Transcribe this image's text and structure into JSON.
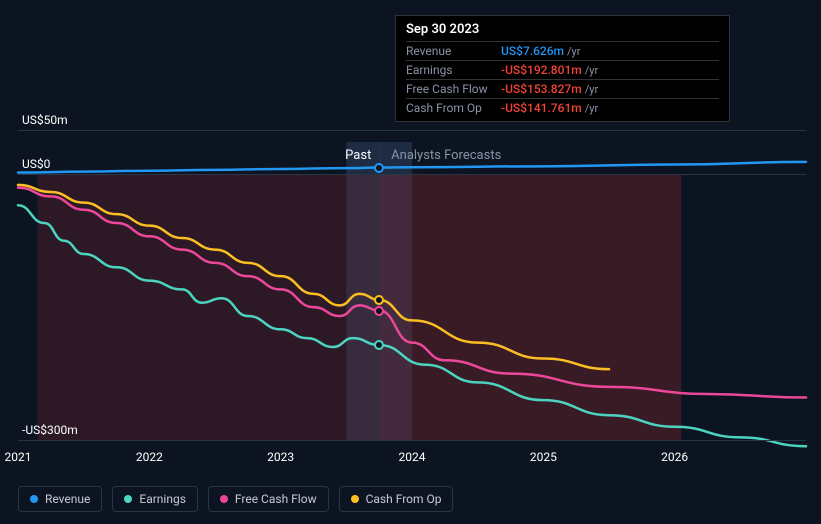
{
  "chart": {
    "type": "line",
    "background_color": "#0d1421",
    "grid_color": "#2a3444",
    "text_color": "#ffffff",
    "muted_text_color": "#8a92a6",
    "y_axis": {
      "min": -300,
      "max": 50,
      "ticks": [
        {
          "value": 50,
          "label": "US$50m"
        },
        {
          "value": 0,
          "label": "US$0"
        },
        {
          "value": -300,
          "label": "-US$300m"
        }
      ]
    },
    "x_axis": {
      "min": 2021,
      "max": 2027,
      "ticks": [
        {
          "value": 2021,
          "label": "2021"
        },
        {
          "value": 2022,
          "label": "2022"
        },
        {
          "value": 2023,
          "label": "2023"
        },
        {
          "value": 2024,
          "label": "2024"
        },
        {
          "value": 2025,
          "label": "2025"
        },
        {
          "value": 2026,
          "label": "2026"
        }
      ]
    },
    "divider_x": 2023.75,
    "past_label": "Past",
    "forecast_label": "Analysts Forecasts",
    "highlight_band": {
      "start": 2023.5,
      "end": 2024.0
    },
    "fill_colors": {
      "past": "rgba(140, 40, 50, 0.25)",
      "forecast": "rgba(140, 40, 50, 0.35)"
    },
    "series": [
      {
        "name": "Revenue",
        "color": "#2196f3",
        "line_width": 2.5,
        "points": [
          {
            "x": 2021.0,
            "y": 2
          },
          {
            "x": 2021.5,
            "y": 3
          },
          {
            "x": 2022.0,
            "y": 4
          },
          {
            "x": 2022.5,
            "y": 5
          },
          {
            "x": 2023.0,
            "y": 6
          },
          {
            "x": 2023.5,
            "y": 7
          },
          {
            "x": 2023.75,
            "y": 7.6
          },
          {
            "x": 2024.0,
            "y": 8
          },
          {
            "x": 2025.0,
            "y": 9
          },
          {
            "x": 2026.0,
            "y": 11
          },
          {
            "x": 2027.0,
            "y": 14
          }
        ]
      },
      {
        "name": "Earnings",
        "color": "#4dd4c0",
        "line_width": 2.5,
        "points": [
          {
            "x": 2021.0,
            "y": -35
          },
          {
            "x": 2021.2,
            "y": -55
          },
          {
            "x": 2021.35,
            "y": -75
          },
          {
            "x": 2021.5,
            "y": -90
          },
          {
            "x": 2021.75,
            "y": -105
          },
          {
            "x": 2022.0,
            "y": -120
          },
          {
            "x": 2022.25,
            "y": -130
          },
          {
            "x": 2022.4,
            "y": -145
          },
          {
            "x": 2022.55,
            "y": -140
          },
          {
            "x": 2022.75,
            "y": -160
          },
          {
            "x": 2023.0,
            "y": -175
          },
          {
            "x": 2023.2,
            "y": -185
          },
          {
            "x": 2023.4,
            "y": -195
          },
          {
            "x": 2023.55,
            "y": -185
          },
          {
            "x": 2023.75,
            "y": -192.8
          },
          {
            "x": 2024.1,
            "y": -215
          },
          {
            "x": 2024.5,
            "y": -235
          },
          {
            "x": 2025.0,
            "y": -255
          },
          {
            "x": 2025.5,
            "y": -272
          },
          {
            "x": 2026.0,
            "y": -285
          },
          {
            "x": 2026.5,
            "y": -297
          },
          {
            "x": 2027.0,
            "y": -307
          }
        ]
      },
      {
        "name": "Free Cash Flow",
        "color": "#ec4899",
        "line_width": 2.5,
        "points": [
          {
            "x": 2021.0,
            "y": -15
          },
          {
            "x": 2021.25,
            "y": -25
          },
          {
            "x": 2021.5,
            "y": -40
          },
          {
            "x": 2021.75,
            "y": -55
          },
          {
            "x": 2022.0,
            "y": -70
          },
          {
            "x": 2022.25,
            "y": -85
          },
          {
            "x": 2022.5,
            "y": -100
          },
          {
            "x": 2022.75,
            "y": -115
          },
          {
            "x": 2023.0,
            "y": -130
          },
          {
            "x": 2023.25,
            "y": -150
          },
          {
            "x": 2023.45,
            "y": -160
          },
          {
            "x": 2023.6,
            "y": -148
          },
          {
            "x": 2023.75,
            "y": -153.8
          },
          {
            "x": 2024.0,
            "y": -190
          },
          {
            "x": 2024.25,
            "y": -210
          },
          {
            "x": 2024.75,
            "y": -225
          },
          {
            "x": 2025.5,
            "y": -240
          },
          {
            "x": 2026.25,
            "y": -248
          },
          {
            "x": 2027.0,
            "y": -252
          }
        ]
      },
      {
        "name": "Cash From Op",
        "color": "#fbbf24",
        "line_width": 2.5,
        "points": [
          {
            "x": 2021.0,
            "y": -12
          },
          {
            "x": 2021.25,
            "y": -20
          },
          {
            "x": 2021.5,
            "y": -32
          },
          {
            "x": 2021.75,
            "y": -45
          },
          {
            "x": 2022.0,
            "y": -58
          },
          {
            "x": 2022.25,
            "y": -72
          },
          {
            "x": 2022.5,
            "y": -85
          },
          {
            "x": 2022.75,
            "y": -100
          },
          {
            "x": 2023.0,
            "y": -115
          },
          {
            "x": 2023.25,
            "y": -135
          },
          {
            "x": 2023.45,
            "y": -148
          },
          {
            "x": 2023.6,
            "y": -135
          },
          {
            "x": 2023.75,
            "y": -141.8
          },
          {
            "x": 2024.0,
            "y": -165
          },
          {
            "x": 2024.5,
            "y": -190
          },
          {
            "x": 2025.0,
            "y": -208
          },
          {
            "x": 2025.5,
            "y": -220
          }
        ]
      }
    ]
  },
  "tooltip": {
    "title": "Sep 30 2023",
    "unit": "/yr",
    "rows": [
      {
        "label": "Revenue",
        "value": "US$7.626m",
        "color": "#2196f3"
      },
      {
        "label": "Earnings",
        "value": "-US$192.801m",
        "color": "#f44336"
      },
      {
        "label": "Free Cash Flow",
        "value": "-US$153.827m",
        "color": "#f44336"
      },
      {
        "label": "Cash From Op",
        "value": "-US$141.761m",
        "color": "#f44336"
      }
    ]
  },
  "markers": [
    {
      "series": "Revenue",
      "x": 2023.75,
      "y": 7.6,
      "color": "#2196f3"
    },
    {
      "series": "Cash From Op",
      "x": 2023.75,
      "y": -141.8,
      "color": "#fbbf24"
    },
    {
      "series": "Free Cash Flow",
      "x": 2023.75,
      "y": -153.8,
      "color": "#ec4899"
    },
    {
      "series": "Earnings",
      "x": 2023.75,
      "y": -192.8,
      "color": "#4dd4c0"
    }
  ],
  "legend": [
    {
      "label": "Revenue",
      "color": "#2196f3"
    },
    {
      "label": "Earnings",
      "color": "#4dd4c0"
    },
    {
      "label": "Free Cash Flow",
      "color": "#ec4899"
    },
    {
      "label": "Cash From Op",
      "color": "#fbbf24"
    }
  ]
}
